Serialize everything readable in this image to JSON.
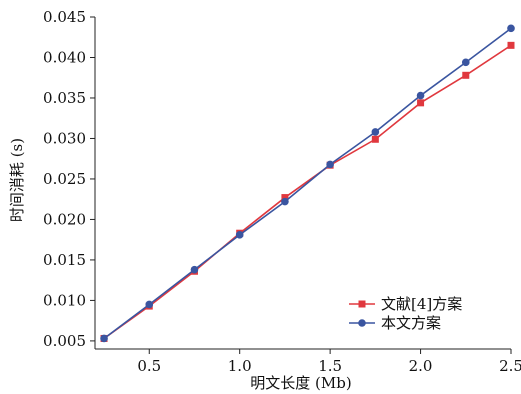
{
  "chart_data": {
    "type": "line",
    "xlabel": "明文长度 (Mb)",
    "ylabel": "时间消耗 (s)",
    "xlim": [
      0.2,
      2.5
    ],
    "ylim": [
      0.004,
      0.045
    ],
    "xticks": [
      0.5,
      1.0,
      1.5,
      2.0,
      2.5
    ],
    "xtick_labels": [
      "0.5",
      "1.0",
      "1.5",
      "2.0",
      "2.5"
    ],
    "yticks": [
      0.005,
      0.01,
      0.015,
      0.02,
      0.025,
      0.03,
      0.035,
      0.04,
      0.045
    ],
    "ytick_labels": [
      "0.005",
      "0.010",
      "0.015",
      "0.020",
      "0.025",
      "0.030",
      "0.035",
      "0.040",
      "0.045"
    ],
    "grid": false,
    "legend_position": "bottom-right",
    "x": [
      0.25,
      0.5,
      0.75,
      1.0,
      1.25,
      1.5,
      1.75,
      2.0,
      2.25,
      2.5
    ],
    "series": [
      {
        "name": "文献[4]方案",
        "color": "#e0383e",
        "marker": "square",
        "values": [
          0.0053,
          0.0093,
          0.0136,
          0.0183,
          0.0227,
          0.0267,
          0.0299,
          0.0344,
          0.0378,
          0.0415
        ]
      },
      {
        "name": "本文方案",
        "color": "#3a55a0",
        "marker": "circle",
        "values": [
          0.0053,
          0.0095,
          0.0138,
          0.0181,
          0.0222,
          0.0268,
          0.0308,
          0.0353,
          0.0394,
          0.0436
        ]
      }
    ]
  }
}
